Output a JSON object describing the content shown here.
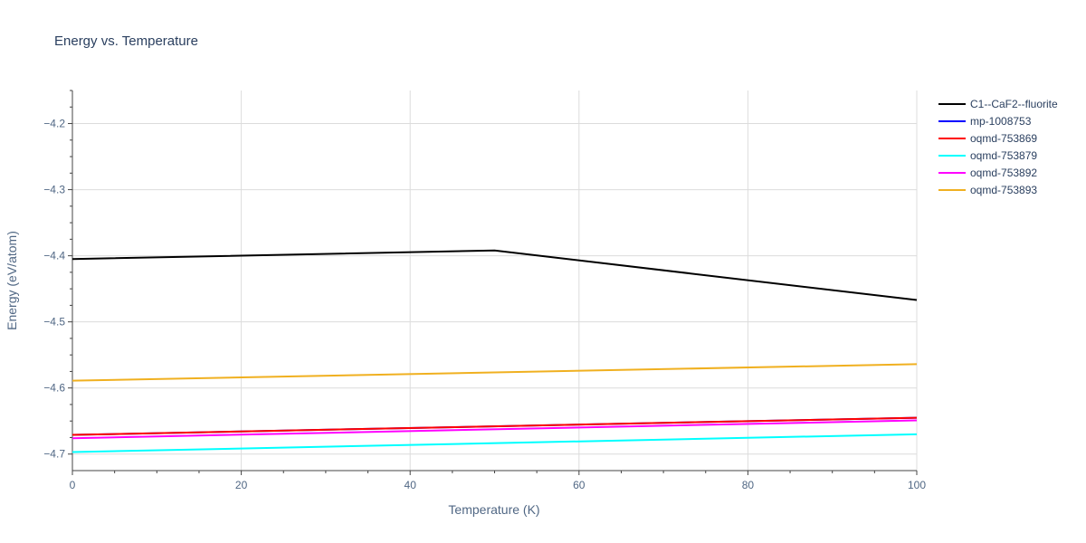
{
  "chart_data": {
    "type": "line",
    "title": "Energy vs. Temperature",
    "xlabel": "Temperature (K)",
    "ylabel": "Energy (eV/atom)",
    "xlim": [
      0,
      100
    ],
    "ylim": [
      -4.725,
      -4.15
    ],
    "x_ticks": [
      0,
      20,
      40,
      60,
      80,
      100
    ],
    "y_ticks": [
      -4.2,
      -4.3,
      -4.4,
      -4.5,
      -4.6,
      -4.7
    ],
    "x_tick_labels": [
      "0",
      "20",
      "40",
      "60",
      "80",
      "100"
    ],
    "y_tick_labels": [
      "−4.2",
      "−4.3",
      "−4.4",
      "−4.5",
      "−4.6",
      "−4.7"
    ],
    "grid": true,
    "legend_position": "top-right",
    "series": [
      {
        "name": "C1--CaF2--fluorite",
        "color": "#000000",
        "x": [
          0,
          50,
          100
        ],
        "y": [
          -4.405,
          -4.392,
          -4.467
        ]
      },
      {
        "name": "mp-1008753",
        "color": "#0000ff",
        "x": [
          0,
          100
        ],
        "y": [
          -4.671,
          -4.645
        ]
      },
      {
        "name": "oqmd-753869",
        "color": "#ff0000",
        "x": [
          0,
          100
        ],
        "y": [
          -4.671,
          -4.645
        ]
      },
      {
        "name": "oqmd-753879",
        "color": "#00ffff",
        "x": [
          0,
          100
        ],
        "y": [
          -4.697,
          -4.67
        ]
      },
      {
        "name": "oqmd-753892",
        "color": "#ff00ff",
        "x": [
          0,
          100
        ],
        "y": [
          -4.676,
          -4.649
        ]
      },
      {
        "name": "oqmd-753893",
        "color": "#f0b020",
        "x": [
          0,
          100
        ],
        "y": [
          -4.589,
          -4.564
        ]
      }
    ]
  }
}
